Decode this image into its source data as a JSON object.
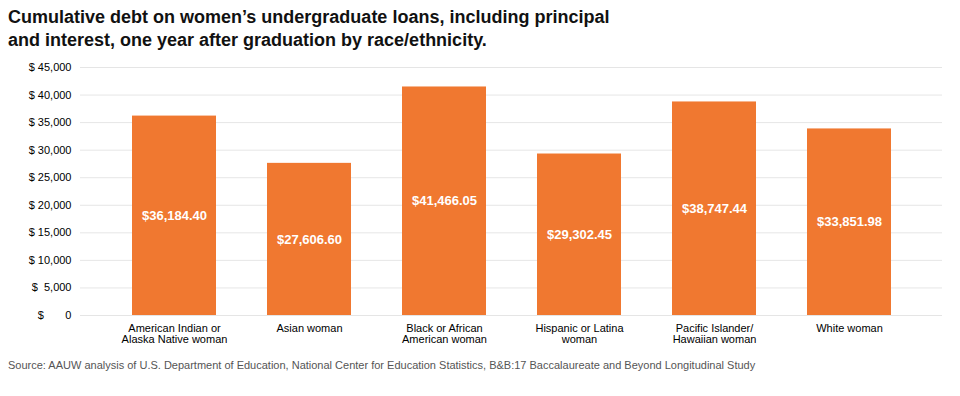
{
  "chart_data": {
    "type": "bar",
    "title": "Cumulative debt on women’s undergraduate loans, including principal\nand interest, one year after graduation by race/ethnicity.",
    "caption": "Source: AAUW analysis of U.S. Department of Education, National Center for Education Statistics, B&B:17 Baccalaureate and Beyond Longitudinal Study",
    "categories": [
      "American Indian or\nAlaska Native woman",
      "Asian woman",
      "Black or African\nAmerican woman",
      "Hispanic or Latina\nwoman",
      "Pacific Islander/\nHawaiian woman",
      "White woman"
    ],
    "values": [
      36184.4,
      27606.6,
      41466.05,
      29302.45,
      38747.44,
      33851.98
    ],
    "value_labels": [
      "$36,184.40",
      "$27,606.60",
      "$41,466.05",
      "$29,302.45",
      "$38,747.44",
      "$33,851.98"
    ],
    "data_labels": true,
    "color": "#F07830",
    "ylim": [
      0,
      45000
    ],
    "yticks": [
      {
        "value": 0,
        "label": "$       0"
      },
      {
        "value": 5000,
        "label": "$  5,000"
      },
      {
        "value": 10000,
        "label": "$ 10,000"
      },
      {
        "value": 15000,
        "label": "$ 15,000"
      },
      {
        "value": 20000,
        "label": "$ 20,000"
      },
      {
        "value": 25000,
        "label": "$ 25,000"
      },
      {
        "value": 30000,
        "label": "$ 30,000"
      },
      {
        "value": 35000,
        "label": "$ 35,000"
      },
      {
        "value": 40000,
        "label": "$ 40,000"
      },
      {
        "value": 45000,
        "label": "$ 45,000"
      }
    ],
    "grid": true
  }
}
